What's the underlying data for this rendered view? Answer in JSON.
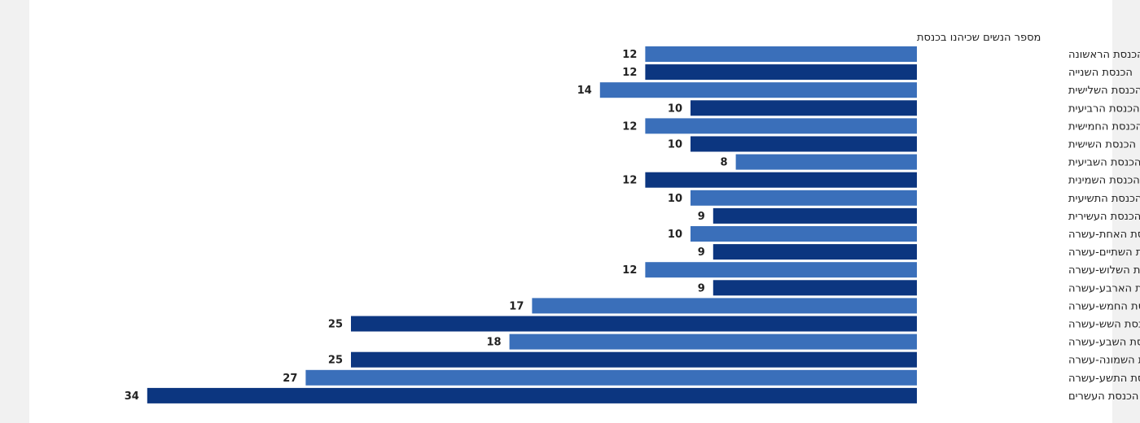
{
  "chart_data": {
    "type": "bar",
    "orientation": "horizontal",
    "direction": "right-to-left",
    "title": "מספר הנשים שכיהנו בכנסת",
    "xlabel": "",
    "ylabel": "",
    "grid": false,
    "xlim": [
      0,
      34
    ],
    "colors": {
      "light": "#3a6fba",
      "dark": "#0c3680"
    },
    "categories": [
      "הכנסת הראשונה",
      "הכנסת השנייה",
      "הכנסת השלישית",
      "הכנסת הרביעית",
      "הכנסת החמישית",
      "הכנסת השישית",
      "הכנסת השביעית",
      "הכנסת השמינית",
      "הכנסת התשיעית",
      "הכנסת העשירית",
      "הכנסת האחת-עשרה",
      "הכנסת השתיים-עשרה",
      "הכנסת השלוש-עשרה",
      "הכנסת הארבע-עשרה",
      "הכנסת החמש-עשרה",
      "הכנסת השש-עשרה",
      "הכנסת השבע-עשרה",
      "הכנסת השמונה-עשרה",
      "הכנסת התשע-עשרה",
      "הכנסת העשרים"
    ],
    "values": [
      12,
      12,
      14,
      10,
      12,
      10,
      8,
      12,
      10,
      9,
      10,
      9,
      12,
      9,
      17,
      25,
      18,
      25,
      27,
      34
    ]
  }
}
